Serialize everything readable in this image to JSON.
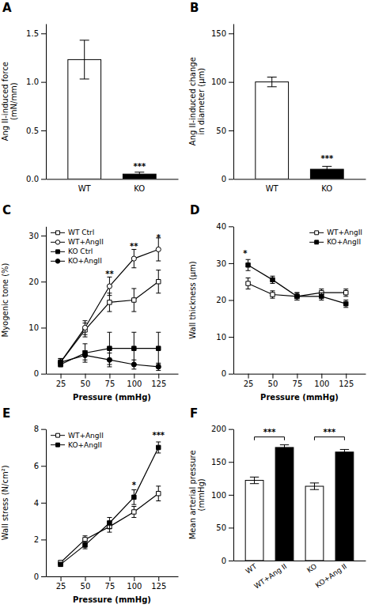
{
  "chart_data": [
    {
      "type": "bar",
      "title": "A",
      "categories": [
        "WT",
        "KO"
      ],
      "values": [
        1.23,
        0.05
      ],
      "errors": [
        0.2,
        0.02
      ],
      "colors": [
        "white",
        "black"
      ],
      "ylabel": "Ang II-induced force\n(mN/mm)",
      "ylim": [
        0.0,
        1.6
      ],
      "yticks": [
        {
          "value": 0,
          "label": "0.0"
        },
        0.5,
        {
          "value": 1,
          "label": "1.0"
        },
        1.5
      ],
      "annotations": [
        {
          "text": "***",
          "x": "KO",
          "y": 0.1
        }
      ],
      "grid": false
    },
    {
      "type": "bar",
      "title": "B",
      "categories": [
        "WT",
        "KO"
      ],
      "values": [
        100,
        10
      ],
      "errors": [
        5,
        3
      ],
      "colors": [
        "white",
        "black"
      ],
      "ylabel": "Ang II-induced change\nin diameter (μm)",
      "ylim": [
        0,
        160
      ],
      "yticks": [
        0,
        50,
        100,
        150
      ],
      "annotations": [
        {
          "text": "***",
          "x": "KO",
          "y": 18
        }
      ],
      "grid": false
    },
    {
      "type": "line",
      "title": "C",
      "x": [
        25,
        50,
        75,
        100,
        125
      ],
      "series": [
        {
          "name": "WT Ctrl",
          "color": "black",
          "marker": "square-open",
          "values": [
            2.5,
            9.5,
            15.5,
            16.0,
            20.0
          ],
          "errors": [
            0.8,
            1.5,
            2.0,
            2.5,
            2.5
          ]
        },
        {
          "name": "WT+AngII",
          "color": "black",
          "marker": "circle-open",
          "values": [
            2.5,
            10.0,
            19.0,
            25.0,
            27.0
          ],
          "errors": [
            0.8,
            1.5,
            2.0,
            2.0,
            2.5
          ]
        },
        {
          "name": "KO Ctrl",
          "color": "black",
          "marker": "square",
          "values": [
            2.0,
            4.5,
            5.5,
            5.5,
            5.5
          ],
          "errors": [
            0.5,
            2.0,
            3.5,
            3.5,
            3.5
          ]
        },
        {
          "name": "KO+AngII",
          "color": "black",
          "marker": "circle",
          "values": [
            2.5,
            4.0,
            3.0,
            2.0,
            1.5
          ],
          "errors": [
            0.5,
            1.0,
            1.5,
            1.0,
            0.8
          ]
        }
      ],
      "ylabel": "Myogenic tone (%)",
      "xlabel": "Pressure (mmHg)",
      "ylim": [
        0,
        32
      ],
      "yticks": [
        0,
        10,
        20,
        30
      ],
      "xlim": [
        10,
        145
      ],
      "xticks": [
        25,
        50,
        75,
        100,
        125
      ],
      "annotations": [
        {
          "text": "**",
          "x": 75,
          "y": 21
        },
        {
          "text": "**",
          "x": 100,
          "y": 27
        },
        {
          "text": "*",
          "x": 125,
          "y": 29
        }
      ],
      "legend": "top-left",
      "grid": false
    },
    {
      "type": "line",
      "title": "D",
      "x": [
        25,
        50,
        75,
        100,
        125
      ],
      "series": [
        {
          "name": "WT+AngII",
          "color": "black",
          "marker": "square-open",
          "values": [
            24.5,
            21.5,
            21.0,
            22.0,
            22.0
          ],
          "errors": [
            1.5,
            1.0,
            1.0,
            1.0,
            1.0
          ]
        },
        {
          "name": "KO+AngII",
          "color": "black",
          "marker": "square",
          "values": [
            29.5,
            25.5,
            21.0,
            21.0,
            19.0
          ],
          "errors": [
            1.5,
            1.0,
            1.0,
            1.0,
            1.0
          ]
        }
      ],
      "ylabel": "Wall thickness (μm)",
      "xlabel": "Pressure (mmHg)",
      "ylim": [
        0,
        40
      ],
      "yticks": [
        0,
        10,
        20,
        30,
        40
      ],
      "xlim": [
        10,
        145
      ],
      "xticks": [
        25,
        50,
        75,
        100,
        125
      ],
      "annotations": [
        {
          "text": "*",
          "x": 22,
          "y": 32
        }
      ],
      "legend": "top-right",
      "grid": false
    },
    {
      "type": "line",
      "title": "E",
      "x": [
        25,
        50,
        75,
        100,
        125
      ],
      "series": [
        {
          "name": "WT+AngII",
          "color": "black",
          "marker": "square-open",
          "values": [
            0.75,
            2.0,
            2.7,
            3.5,
            4.5
          ],
          "errors": [
            0.1,
            0.2,
            0.3,
            0.3,
            0.4
          ]
        },
        {
          "name": "KO+AngII",
          "color": "black",
          "marker": "square",
          "values": [
            0.65,
            1.7,
            2.9,
            4.3,
            7.0
          ],
          "errors": [
            0.1,
            0.2,
            0.3,
            0.4,
            0.3
          ]
        }
      ],
      "ylabel": "Wall stress (N/cm²)",
      "xlabel": "Pressure (mmHg)",
      "ylim": [
        0,
        8
      ],
      "yticks": [
        0,
        2,
        4,
        6,
        8
      ],
      "xlim": [
        10,
        145
      ],
      "xticks": [
        25,
        50,
        75,
        100,
        125
      ],
      "annotations": [
        {
          "text": "*",
          "x": 100,
          "y": 4.8
        },
        {
          "text": "***",
          "x": 125,
          "y": 7.5
        }
      ],
      "legend": "top-left",
      "grid": false
    },
    {
      "type": "bar",
      "title": "F",
      "categories": [
        "WT",
        "WT+Ang II",
        "KO",
        "KO+Ang II"
      ],
      "values": [
        122,
        172,
        113,
        165
      ],
      "errors": [
        5,
        4,
        5,
        4
      ],
      "colors": [
        "white",
        "black",
        "white",
        "black"
      ],
      "ylabel": "Mean arterial pressure\n(mmHg)",
      "ylim": [
        0,
        200
      ],
      "yticks": [
        0,
        50,
        100,
        150,
        200
      ],
      "brackets": [
        {
          "from": "WT",
          "to": "WT+Ang II",
          "y": 183,
          "height": 5,
          "text": "***"
        },
        {
          "from": "KO",
          "to": "KO+Ang II",
          "y": 183,
          "height": 5,
          "text": "***"
        }
      ],
      "grid": false
    }
  ]
}
